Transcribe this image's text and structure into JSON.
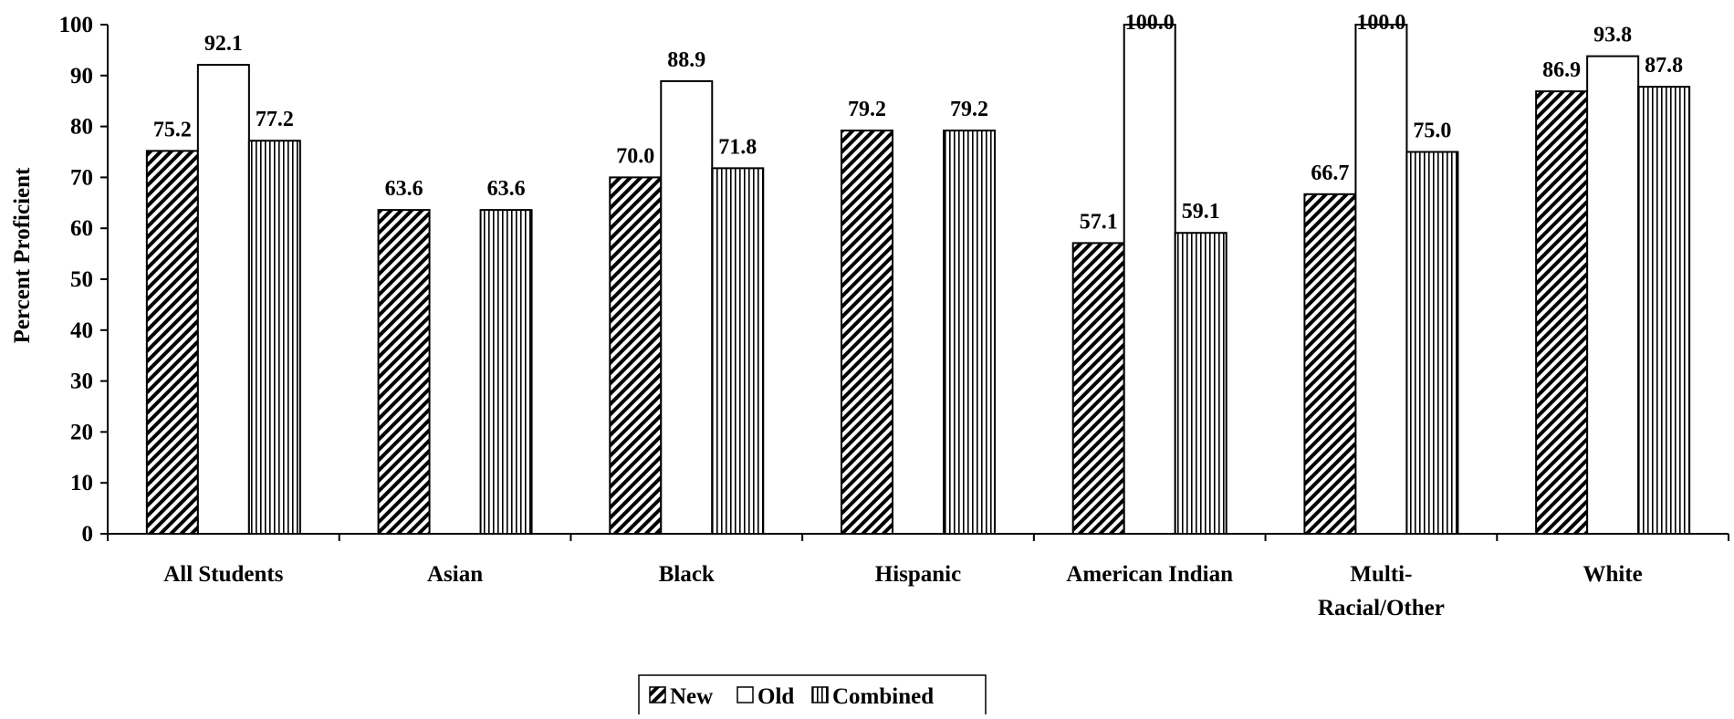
{
  "chart_data": {
    "type": "bar",
    "title": "",
    "xlabel": "",
    "ylabel": "Percent Proficient",
    "ylim": [
      0,
      100
    ],
    "yticks": [
      0,
      10,
      20,
      30,
      40,
      50,
      60,
      70,
      80,
      90,
      100
    ],
    "grid": false,
    "legend_position": "bottom-center",
    "categories": [
      [
        "All Students"
      ],
      [
        "Asian"
      ],
      [
        "Black"
      ],
      [
        "Hispanic"
      ],
      [
        "American Indian"
      ],
      [
        "Multi-",
        "Racial/Other"
      ],
      [
        "White"
      ]
    ],
    "series": [
      {
        "name": "New",
        "pattern": "diagonal-hatch",
        "values": [
          75.2,
          63.6,
          70.0,
          79.2,
          57.1,
          66.7,
          86.9
        ]
      },
      {
        "name": "Old",
        "pattern": "solid-white",
        "values": [
          92.1,
          null,
          88.9,
          null,
          100.0,
          100.0,
          93.8
        ]
      },
      {
        "name": "Combined",
        "pattern": "vertical-lines",
        "values": [
          77.2,
          63.6,
          71.8,
          79.2,
          59.1,
          75.0,
          87.8
        ]
      }
    ],
    "data_labels": [
      [
        "75.2",
        "92.1",
        "77.2"
      ],
      [
        "63.6",
        "",
        "63.6"
      ],
      [
        "70.0",
        "88.9",
        "71.8"
      ],
      [
        "79.2",
        "",
        "79.2"
      ],
      [
        "57.1",
        "100.0",
        "59.1"
      ],
      [
        "66.7",
        "100.0",
        "75.0"
      ],
      [
        "86.9",
        "93.8",
        "87.8"
      ]
    ]
  }
}
